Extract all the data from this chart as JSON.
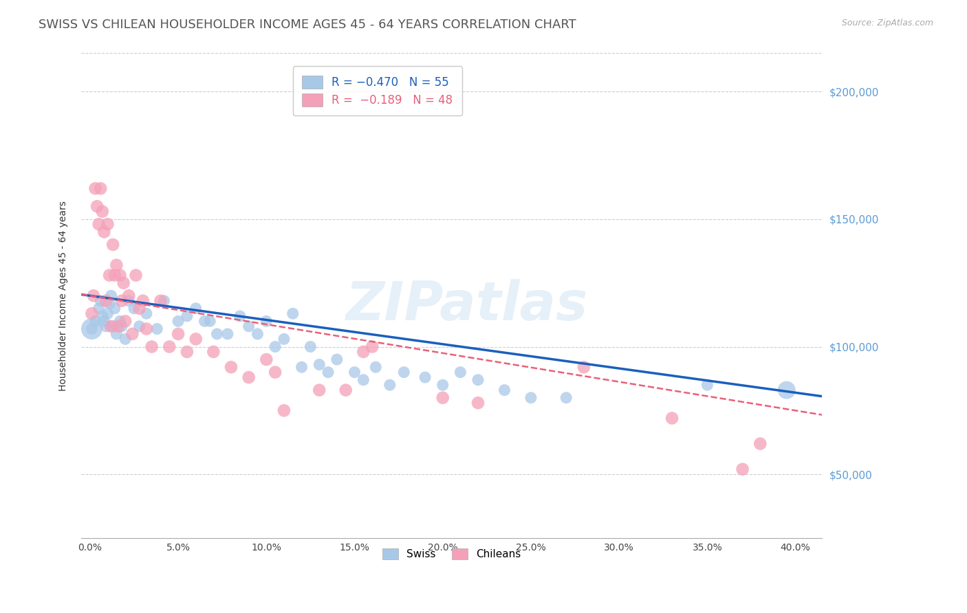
{
  "title": "SWISS VS CHILEAN HOUSEHOLDER INCOME AGES 45 - 64 YEARS CORRELATION CHART",
  "source": "Source: ZipAtlas.com",
  "ylabel": "Householder Income Ages 45 - 64 years",
  "xlabel_ticks": [
    "0.0%",
    "5.0%",
    "10.0%",
    "15.0%",
    "20.0%",
    "25.0%",
    "30.0%",
    "35.0%",
    "40.0%"
  ],
  "xlabel_vals": [
    0.0,
    0.05,
    0.1,
    0.15,
    0.2,
    0.25,
    0.3,
    0.35,
    0.4
  ],
  "ytick_vals": [
    50000,
    100000,
    150000,
    200000
  ],
  "ytick_labels": [
    "$50,000",
    "$100,000",
    "$150,000",
    "$200,000"
  ],
  "ylim": [
    25000,
    215000
  ],
  "xlim": [
    -0.005,
    0.415
  ],
  "swiss_color": "#a8c8e8",
  "chilean_color": "#f4a0b8",
  "swiss_line_color": "#1a5fbd",
  "chilean_line_color": "#e8607a",
  "swiss_R": -0.47,
  "swiss_N": 55,
  "chilean_R": -0.189,
  "chilean_N": 48,
  "watermark": "ZIPatlas",
  "swiss_x": [
    0.001,
    0.003,
    0.005,
    0.006,
    0.007,
    0.008,
    0.009,
    0.01,
    0.011,
    0.012,
    0.013,
    0.014,
    0.015,
    0.017,
    0.018,
    0.02,
    0.022,
    0.025,
    0.028,
    0.032,
    0.038,
    0.042,
    0.05,
    0.055,
    0.06,
    0.065,
    0.068,
    0.072,
    0.078,
    0.085,
    0.09,
    0.095,
    0.1,
    0.105,
    0.11,
    0.115,
    0.12,
    0.125,
    0.13,
    0.135,
    0.14,
    0.15,
    0.155,
    0.162,
    0.17,
    0.178,
    0.19,
    0.2,
    0.21,
    0.22,
    0.235,
    0.25,
    0.27,
    0.35,
    0.395
  ],
  "swiss_y": [
    107000,
    110000,
    115000,
    118000,
    112000,
    110000,
    108000,
    113000,
    117000,
    120000,
    108000,
    115000,
    105000,
    110000,
    108000,
    103000,
    118000,
    115000,
    108000,
    113000,
    107000,
    118000,
    110000,
    112000,
    115000,
    110000,
    110000,
    105000,
    105000,
    112000,
    108000,
    105000,
    110000,
    100000,
    103000,
    113000,
    92000,
    100000,
    93000,
    90000,
    95000,
    90000,
    87000,
    92000,
    85000,
    90000,
    88000,
    85000,
    90000,
    87000,
    83000,
    80000,
    80000,
    85000,
    83000
  ],
  "swiss_size": [
    60,
    60,
    60,
    60,
    60,
    60,
    60,
    60,
    60,
    60,
    60,
    60,
    60,
    60,
    60,
    60,
    60,
    60,
    60,
    60,
    60,
    60,
    60,
    60,
    60,
    60,
    60,
    60,
    60,
    60,
    60,
    60,
    60,
    60,
    60,
    60,
    60,
    60,
    60,
    60,
    60,
    60,
    60,
    60,
    60,
    60,
    60,
    60,
    60,
    60,
    60,
    60,
    60,
    60,
    180
  ],
  "chilean_x": [
    0.001,
    0.002,
    0.003,
    0.004,
    0.005,
    0.006,
    0.007,
    0.008,
    0.009,
    0.01,
    0.011,
    0.012,
    0.013,
    0.014,
    0.015,
    0.016,
    0.017,
    0.018,
    0.019,
    0.02,
    0.022,
    0.024,
    0.026,
    0.028,
    0.03,
    0.032,
    0.035,
    0.04,
    0.045,
    0.05,
    0.055,
    0.06,
    0.07,
    0.08,
    0.09,
    0.1,
    0.105,
    0.11,
    0.13,
    0.145,
    0.155,
    0.16,
    0.2,
    0.22,
    0.28,
    0.33,
    0.37,
    0.38
  ],
  "chilean_y": [
    113000,
    120000,
    162000,
    155000,
    148000,
    162000,
    153000,
    145000,
    118000,
    148000,
    128000,
    108000,
    140000,
    128000,
    132000,
    108000,
    128000,
    118000,
    125000,
    110000,
    120000,
    105000,
    128000,
    115000,
    118000,
    107000,
    100000,
    118000,
    100000,
    105000,
    98000,
    103000,
    98000,
    92000,
    88000,
    95000,
    90000,
    75000,
    83000,
    83000,
    98000,
    100000,
    80000,
    78000,
    92000,
    72000,
    52000,
    62000
  ],
  "background_color": "#ffffff",
  "grid_color": "#cccccc",
  "right_axis_color": "#5b9bd5",
  "title_color": "#555555",
  "title_fontsize": 13,
  "label_fontsize": 10,
  "tick_fontsize": 10,
  "legend_fontsize": 11
}
